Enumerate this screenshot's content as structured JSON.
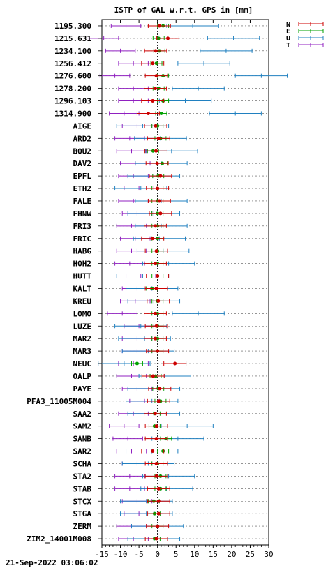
{
  "chart_data": {
    "type": "errorbar-dot",
    "title": "ISTP of GAL w.r.t. GPS in [mm]",
    "xlim": [
      -15,
      30
    ],
    "xticks": [
      "-15",
      "-10",
      "-5",
      "0",
      "5",
      "10",
      "15",
      "20",
      "25",
      "30"
    ],
    "grid": "dotted horizontal lines per station",
    "legend_position": "top-right",
    "legend": [
      {
        "name": "N",
        "color": "#cc0000"
      },
      {
        "name": "E",
        "color": "#00a000"
      },
      {
        "name": "U",
        "color": "#2080c0"
      },
      {
        "name": "T",
        "color": "#9020c0"
      }
    ],
    "timestamp": "21-Sep-2022 03:06:02",
    "series_order": [
      "N",
      "E",
      "U",
      "T"
    ],
    "categories": [
      "1195.300",
      "1215.631",
      "1234.100",
      "1256.412",
      "1276.600",
      "1278.200",
      "1296.103",
      "1314.900",
      "AIGE",
      "ARD2",
      "BOU2",
      "DAV2",
      "EPFL",
      "ETH2",
      "FALE",
      "FHNW",
      "FRI3",
      "FRIC",
      "HABG",
      "HOH2",
      "HUTT",
      "KALT",
      "KREU",
      "LOMO",
      "LUZE",
      "MAR2",
      "MAR3",
      "NEUC",
      "OALP",
      "PAYE",
      "PFA3_11005M004",
      "SAA2",
      "SAM2",
      "SANB",
      "SAR2",
      "SCHA",
      "STA2",
      "STAB",
      "STCX",
      "STGA",
      "ZERM",
      "ZIM2_14001M008"
    ],
    "values": [
      [
        0.5,
        1.5,
        9.5,
        -8.5
      ],
      [
        2.8,
        0.3,
        20.5,
        -14.5
      ],
      [
        -0.5,
        0.5,
        18.5,
        -10
      ],
      [
        -1.3,
        -0.3,
        12.5,
        -6.5
      ],
      [
        -0.3,
        1.5,
        28,
        -11.5
      ],
      [
        -0.6,
        0.3,
        11,
        -6.5
      ],
      [
        -1.3,
        1.5,
        7.5,
        -6.5
      ],
      [
        -2.5,
        1.0,
        21,
        -9
      ],
      [
        -0.5,
        0.0,
        -4,
        -5.5
      ],
      [
        0.3,
        0.8,
        0.8,
        -7.5
      ],
      [
        -0.4,
        -1.2,
        3.8,
        -7
      ],
      [
        -0.1,
        1.3,
        1.0,
        -6
      ],
      [
        0.8,
        0.2,
        -1.0,
        -6.5
      ],
      [
        0.0,
        0.0,
        -4.5,
        -5
      ],
      [
        0.5,
        0.0,
        1.0,
        -6.5
      ],
      [
        0.8,
        0.0,
        -1.0,
        -5.5
      ],
      [
        -0.6,
        0.0,
        1.0,
        -7
      ],
      [
        -1.3,
        0.0,
        0.5,
        -6
      ],
      [
        -0.3,
        0.0,
        1.5,
        -7
      ],
      [
        -0.6,
        0.0,
        3.0,
        -7.5
      ],
      [
        0.0,
        0.0,
        -4.0,
        -4.5
      ],
      [
        -0.3,
        -1.5,
        -1.5,
        -5.5
      ],
      [
        0.2,
        0.0,
        -1.0,
        -6
      ],
      [
        -0.6,
        0.0,
        11,
        -9.5
      ],
      [
        -0.3,
        0.0,
        -4.5,
        -5
      ],
      [
        -0.6,
        0.0,
        -3.5,
        -5.5
      ],
      [
        0.0,
        0.0,
        -2.5,
        -5.5
      ],
      [
        4.7,
        -5.5,
        -9,
        -6.5
      ],
      [
        -1.2,
        -0.5,
        2.0,
        -7
      ],
      [
        0.6,
        0.2,
        -1.0,
        -5.5
      ],
      [
        0.3,
        0.8,
        -1.5,
        -3.5
      ],
      [
        -0.6,
        -0.8,
        -1.0,
        -6.5
      ],
      [
        -0.3,
        -0.8,
        8.0,
        -9
      ],
      [
        -0.3,
        2.3,
        5.5,
        -8
      ],
      [
        -1.3,
        1.5,
        -1.5,
        -7
      ],
      [
        -0.3,
        0.0,
        -2.5,
        -5.5
      ],
      [
        -0.3,
        0.8,
        3.0,
        -7.5
      ],
      [
        0.3,
        0.8,
        2.5,
        -7.5
      ],
      [
        0.3,
        -1.0,
        -3.0,
        -5.5
      ],
      [
        0.3,
        -0.8,
        -3.0,
        -5
      ],
      [
        0.0,
        0.0,
        0.0,
        -7
      ],
      [
        -0.3,
        -0.8,
        -1.0,
        -6.5
      ]
    ]
  }
}
